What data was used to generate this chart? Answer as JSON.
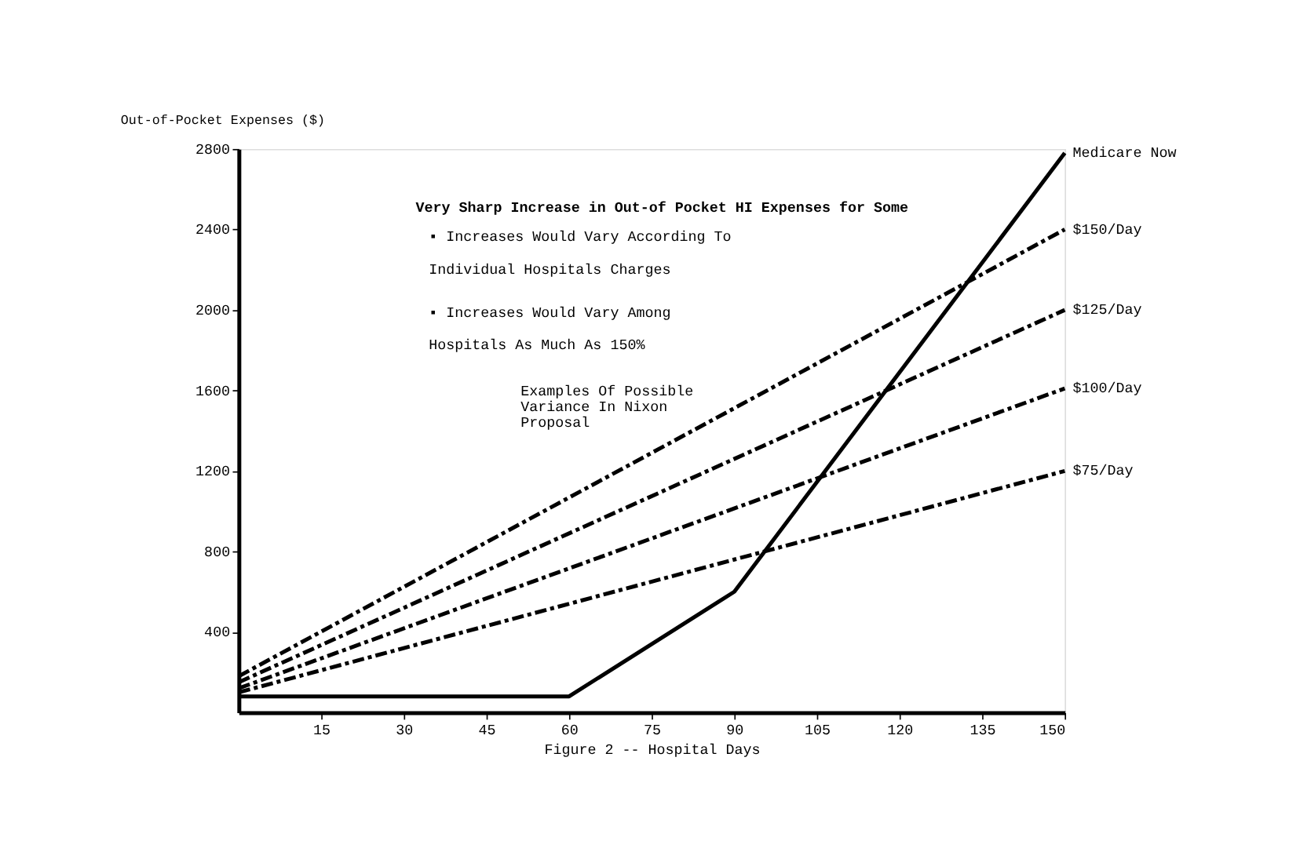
{
  "chart_data": {
    "type": "line",
    "title": "Very Sharp Increase in Out-of Pocket HI Expenses for Some",
    "xlabel": "Figure 2 -- Hospital Days",
    "ylabel": "Out-of-Pocket Expenses ($)",
    "x": [
      0,
      150
    ],
    "series": [
      {
        "name": "$150/Day",
        "color": "#000000",
        "line_style": "dashed",
        "values": [
          180,
          2400
        ]
      },
      {
        "name": "$125/Day",
        "color": "#000000",
        "line_style": "dashed",
        "values": [
          150,
          2000
        ]
      },
      {
        "name": "$100/Day",
        "color": "#000000",
        "line_style": "dashed",
        "values": [
          120,
          1610
        ]
      },
      {
        "name": "$75/Day",
        "color": "#000000",
        "line_style": "dashed",
        "values": [
          100,
          1200
        ]
      },
      {
        "name": "Medicare Now",
        "color": "#000000",
        "line_style": "solid",
        "x": [
          0,
          60,
          90,
          150
        ],
        "values": [
          80,
          80,
          600,
          2780
        ]
      }
    ],
    "annotations": [
      "▪ Increases Would Vary According To Individual Hospitals Charges",
      "▪ Increases Would Vary Among Hospitals As Much As 150%",
      "Examples Of Possible Variance In Nixon Proposal"
    ],
    "xlim": [
      0,
      150
    ],
    "xticks": [
      15,
      30,
      45,
      60,
      75,
      90,
      105,
      120,
      135,
      150
    ],
    "ylim": [
      0,
      2800
    ],
    "yticks": [
      400,
      800,
      1200,
      1600,
      2000,
      2400,
      2800
    ],
    "grid": false
  }
}
